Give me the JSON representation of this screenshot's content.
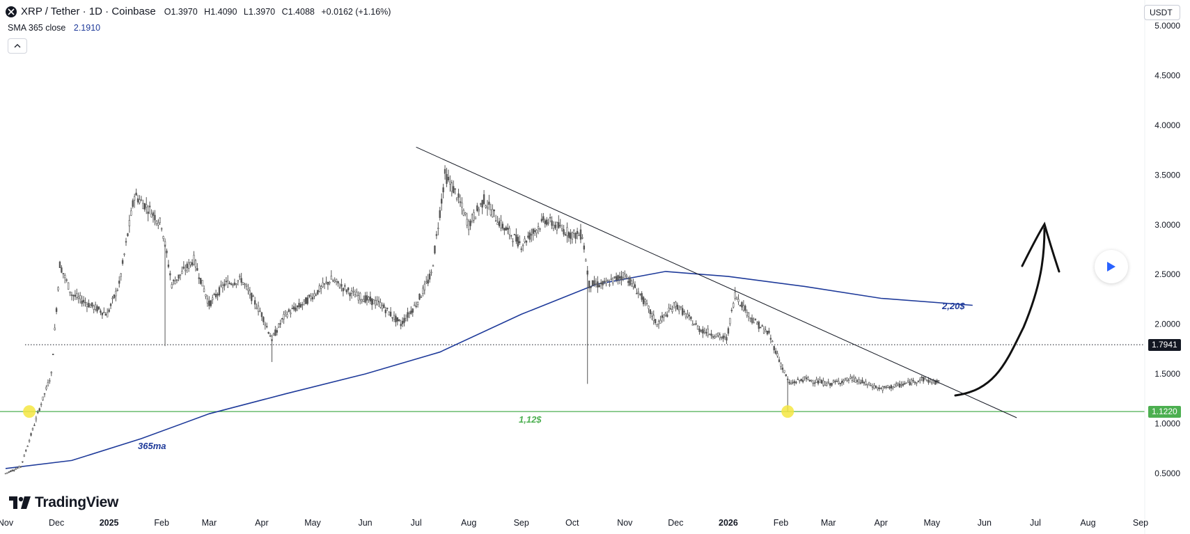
{
  "header": {
    "symbol": "XRP / Tether · 1D · Coinbase",
    "ohlc": [
      {
        "k": "O",
        "v": "1.3970"
      },
      {
        "k": "H",
        "v": "1.4090"
      },
      {
        "k": "L",
        "v": "1.3970"
      },
      {
        "k": "C",
        "v": "1.4088"
      }
    ],
    "change": "+0.0162 (+1.16%)"
  },
  "indicator": {
    "name": "SMA 365 close",
    "value": "2.1910"
  },
  "currency": "USDT",
  "brand": "TradingView",
  "colors": {
    "sma": "#1e3a9a",
    "support": "#4caf50",
    "candle": "#555555",
    "trendline": "#131722",
    "level_tag": "#131722",
    "highlight": "#f5e642"
  },
  "annotations": {
    "sma_label": "365ma",
    "support_label": "1,12$",
    "sma_target_label": "2,20$"
  },
  "price_tags": {
    "dotted_level": "1.7941",
    "support_level": "1.1220"
  },
  "chart_data": {
    "type": "candlestick",
    "y_axis": {
      "ticks": [
        "0.5000",
        "1.0000",
        "1.5000",
        "2.0000",
        "2.5000",
        "3.0000",
        "3.5000",
        "4.0000",
        "4.5000",
        "5.0000"
      ]
    },
    "x_axis": {
      "ticks": [
        "Nov",
        "Dec",
        "2025",
        "Feb",
        "Mar",
        "Apr",
        "May",
        "Jun",
        "Jul",
        "Aug",
        "Sep",
        "Oct",
        "Nov",
        "Dec",
        "2026",
        "Feb",
        "Mar",
        "Apr",
        "May",
        "Jun",
        "Jul",
        "Aug",
        "Sep"
      ]
    },
    "price_path": [
      [
        "2024-11-01",
        0.5
      ],
      [
        "2024-11-10",
        0.57
      ],
      [
        "2024-11-20",
        1.1
      ],
      [
        "2024-11-28",
        1.5
      ],
      [
        "2024-12-03",
        2.6
      ],
      [
        "2024-12-10",
        2.3
      ],
      [
        "2024-12-20",
        2.2
      ],
      [
        "2024-12-31",
        2.1
      ],
      [
        "2025-01-07",
        2.4
      ],
      [
        "2025-01-16",
        3.3
      ],
      [
        "2025-01-25",
        3.15
      ],
      [
        "2025-02-01",
        3.0
      ],
      [
        "2025-02-07",
        2.4
      ],
      [
        "2025-02-20",
        2.65
      ],
      [
        "2025-03-01",
        2.2
      ],
      [
        "2025-03-10",
        2.4
      ],
      [
        "2025-03-20",
        2.45
      ],
      [
        "2025-04-01",
        2.1
      ],
      [
        "2025-04-07",
        1.85
      ],
      [
        "2025-04-15",
        2.1
      ],
      [
        "2025-04-25",
        2.2
      ],
      [
        "2025-05-12",
        2.45
      ],
      [
        "2025-05-25",
        2.3
      ],
      [
        "2025-06-10",
        2.2
      ],
      [
        "2025-06-22",
        2.0
      ],
      [
        "2025-07-01",
        2.2
      ],
      [
        "2025-07-10",
        2.5
      ],
      [
        "2025-07-18",
        3.5
      ],
      [
        "2025-07-25",
        3.3
      ],
      [
        "2025-08-01",
        3.0
      ],
      [
        "2025-08-10",
        3.25
      ],
      [
        "2025-08-20",
        3.0
      ],
      [
        "2025-09-01",
        2.8
      ],
      [
        "2025-09-15",
        3.05
      ],
      [
        "2025-10-01",
        2.9
      ],
      [
        "2025-10-07",
        2.9
      ],
      [
        "2025-10-11",
        2.4
      ],
      [
        "2025-10-20",
        2.4
      ],
      [
        "2025-11-01",
        2.5
      ],
      [
        "2025-11-10",
        2.3
      ],
      [
        "2025-11-20",
        2.0
      ],
      [
        "2025-12-01",
        2.2
      ],
      [
        "2025-12-15",
        1.95
      ],
      [
        "2025-12-31",
        1.85
      ],
      [
        "2026-01-05",
        2.3
      ],
      [
        "2026-01-15",
        2.05
      ],
      [
        "2026-01-25",
        1.9
      ],
      [
        "2026-02-01",
        1.6
      ],
      [
        "2026-02-06",
        1.4
      ],
      [
        "2026-02-15",
        1.45
      ],
      [
        "2026-03-01",
        1.4
      ],
      [
        "2026-03-15",
        1.45
      ],
      [
        "2026-04-01",
        1.35
      ],
      [
        "2026-04-15",
        1.4
      ],
      [
        "2026-04-25",
        1.45
      ],
      [
        "2026-05-05",
        1.41
      ]
    ],
    "sma365": [
      [
        "2024-11-01",
        0.55
      ],
      [
        "2024-12-10",
        0.63
      ],
      [
        "2025-01-20",
        0.85
      ],
      [
        "2025-03-01",
        1.1
      ],
      [
        "2025-04-15",
        1.3
      ],
      [
        "2025-06-01",
        1.5
      ],
      [
        "2025-07-15",
        1.72
      ],
      [
        "2025-09-01",
        2.1
      ],
      [
        "2025-10-15",
        2.4
      ],
      [
        "2025-11-25",
        2.53
      ],
      [
        "2026-01-01",
        2.48
      ],
      [
        "2026-02-15",
        2.38
      ],
      [
        "2026-04-01",
        2.26
      ],
      [
        "2026-05-25",
        2.19
      ]
    ],
    "levels": [
      {
        "name": "dotted",
        "value": 1.7941
      },
      {
        "name": "support",
        "value": 1.122
      }
    ],
    "trendline": [
      [
        "2025-07-01",
        3.78
      ],
      [
        "2026-06-20",
        1.06
      ]
    ],
    "highlights": [
      [
        "2024-11-15",
        1.122
      ],
      [
        "2026-02-05",
        1.122
      ]
    ]
  }
}
